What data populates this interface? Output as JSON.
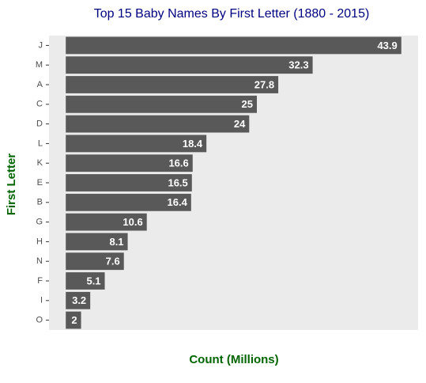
{
  "chart_data": {
    "type": "bar",
    "orientation": "horizontal",
    "title": "Top 15 Baby Names By First Letter (1880 - 2015)",
    "x_label": "Count (Millions)",
    "y_label": "First Letter",
    "categories": [
      "J",
      "M",
      "A",
      "C",
      "D",
      "L",
      "K",
      "E",
      "B",
      "G",
      "H",
      "N",
      "F",
      "I",
      "O"
    ],
    "values": [
      43.9,
      32.3,
      27.8,
      25,
      24,
      18.4,
      16.6,
      16.5,
      16.4,
      10.6,
      8.1,
      7.6,
      5.1,
      3.2,
      2
    ],
    "color": "#595959",
    "xlim": [
      -2.195,
      46.095
    ],
    "grid": false
  }
}
